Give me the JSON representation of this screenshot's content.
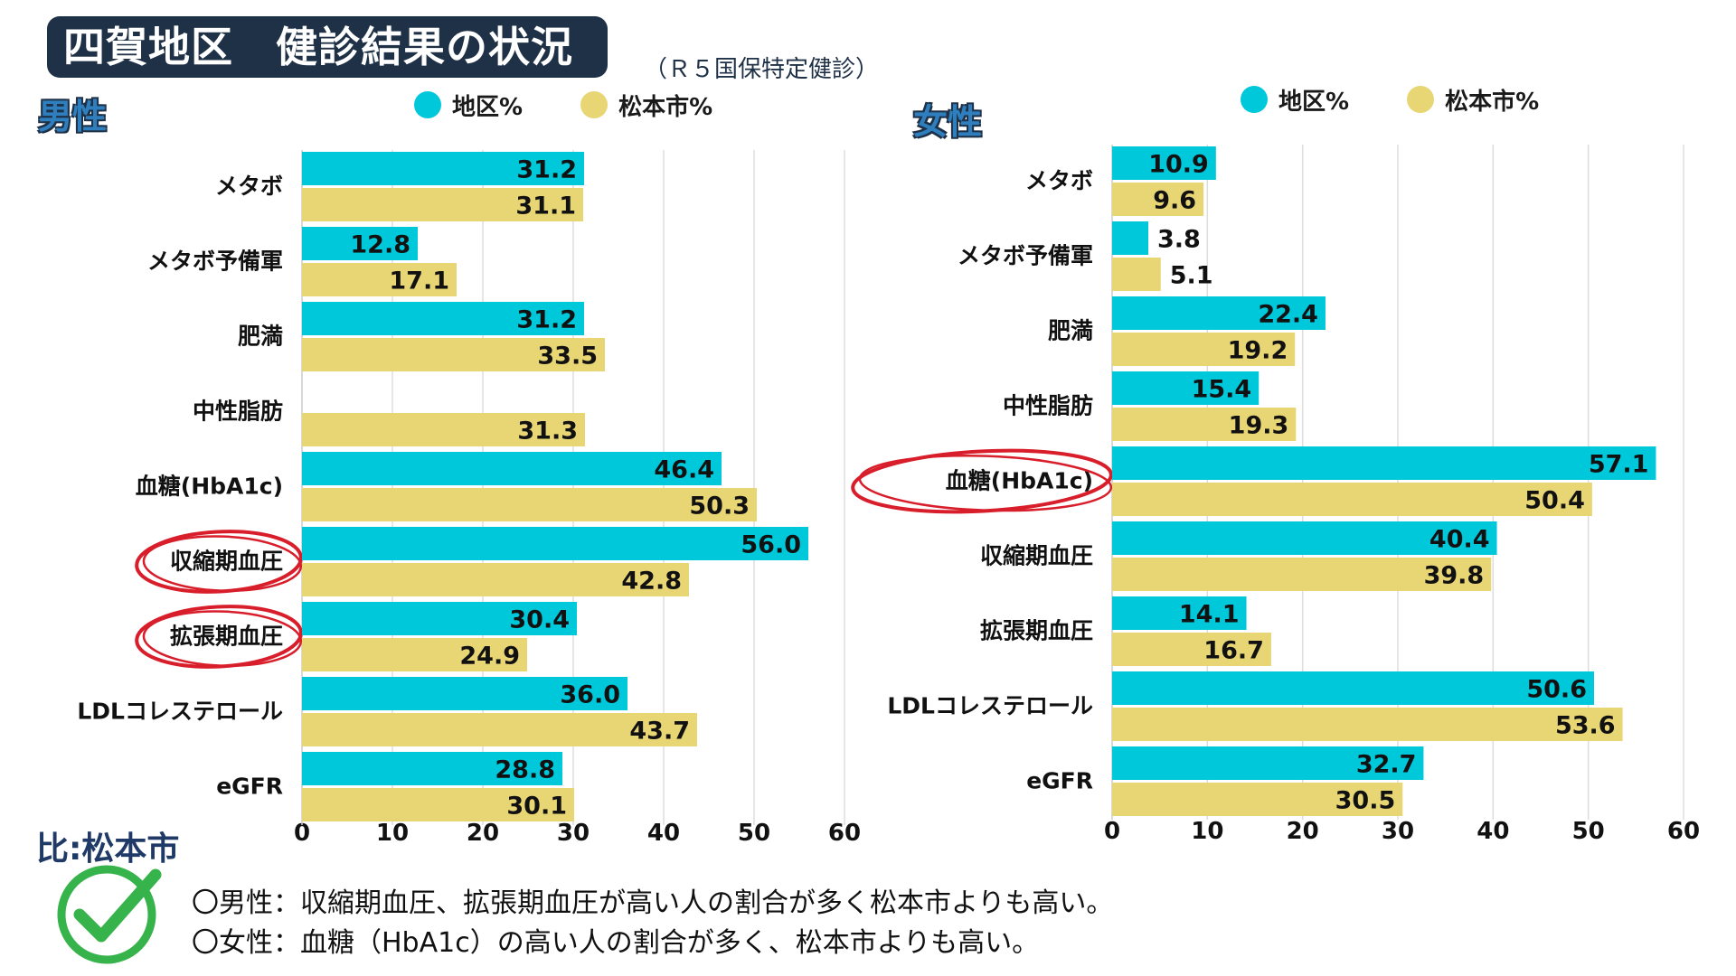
{
  "title": "四賀地区　健診結果の状況",
  "subtitle": "（Ｒ５国保特定健診）",
  "comparison_label": "比:松本市",
  "notes": [
    "〇男性：収縮期血圧、拡張期血圧が高い人の割合が多く松本市よりも高い。",
    "〇女性：血糖（HbA1c）の高い人の割合が多く、松本市よりも高い。"
  ],
  "colors": {
    "district": "#00c8db",
    "matsumoto": "#e8d574",
    "title_bg": "#1f3147",
    "circle": "#d81e2a",
    "check": "#36b34a"
  },
  "icons": {
    "check": "check-mark-icon",
    "legend_district": "circle-dot-icon",
    "legend_matsumoto": "circle-dot-icon"
  },
  "chart_data": [
    {
      "type": "bar",
      "orientation": "horizontal",
      "panel_label": "男性",
      "categories": [
        "メタボ",
        "メタボ予備軍",
        "肥満",
        "中性脂肪",
        "血糖(HbA1c)",
        "収縮期血圧",
        "拡張期血圧",
        "LDLコレステロール",
        "eGFR"
      ],
      "series": [
        {
          "name": "地区%",
          "values": [
            31.2,
            12.8,
            31.2,
            null,
            46.4,
            56.0,
            30.4,
            36.0,
            28.8
          ]
        },
        {
          "name": "松本市%",
          "values": [
            31.1,
            17.1,
            33.5,
            31.3,
            50.3,
            42.8,
            24.9,
            43.7,
            30.1
          ]
        }
      ],
      "xlim": [
        0,
        60
      ],
      "xticks": [
        0,
        10,
        20,
        30,
        40,
        50,
        60
      ],
      "grid": true,
      "legend": "top",
      "circled_categories": [
        "収縮期血圧",
        "拡張期血圧"
      ]
    },
    {
      "type": "bar",
      "orientation": "horizontal",
      "panel_label": "女性",
      "categories": [
        "メタボ",
        "メタボ予備軍",
        "肥満",
        "中性脂肪",
        "血糖(HbA1c)",
        "収縮期血圧",
        "拡張期血圧",
        "LDLコレステロール",
        "eGFR"
      ],
      "series": [
        {
          "name": "地区%",
          "values": [
            10.9,
            3.8,
            22.4,
            15.4,
            57.1,
            40.4,
            14.1,
            50.6,
            32.7
          ]
        },
        {
          "name": "松本市%",
          "values": [
            9.6,
            5.1,
            19.2,
            19.3,
            50.4,
            39.8,
            16.7,
            53.6,
            30.5
          ]
        }
      ],
      "xlim": [
        0,
        60
      ],
      "xticks": [
        0,
        10,
        20,
        30,
        40,
        50,
        60
      ],
      "grid": true,
      "legend": "top",
      "circled_categories": [
        "血糖(HbA1c)"
      ]
    }
  ]
}
